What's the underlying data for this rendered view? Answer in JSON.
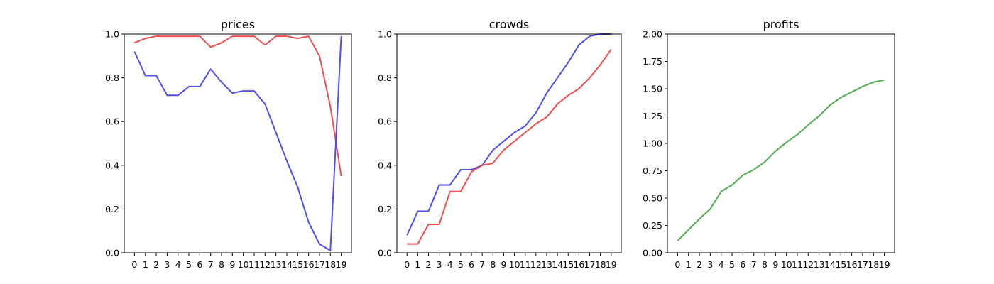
{
  "chart_data": [
    {
      "type": "line",
      "title": "prices",
      "xlabel": "",
      "ylabel": "",
      "x": [
        0,
        1,
        2,
        3,
        4,
        5,
        6,
        7,
        8,
        9,
        10,
        11,
        12,
        13,
        14,
        15,
        16,
        17,
        18,
        19
      ],
      "xticks": [
        "0",
        "1",
        "2",
        "3",
        "4",
        "5",
        "6",
        "7",
        "8",
        "9",
        "10",
        "11",
        "12",
        "13",
        "14",
        "15",
        "16",
        "17",
        "18",
        "19"
      ],
      "ylim": [
        0,
        1.0
      ],
      "yticks": [
        "0.0",
        "0.2",
        "0.4",
        "0.6",
        "0.8",
        "1.0"
      ],
      "grid": false,
      "series": [
        {
          "color": "#ef4444",
          "values": [
            0.96,
            0.98,
            0.99,
            0.99,
            0.99,
            0.99,
            0.99,
            0.94,
            0.96,
            0.99,
            0.99,
            0.99,
            0.95,
            0.99,
            0.99,
            0.98,
            0.99,
            0.9,
            0.67,
            0.35
          ]
        },
        {
          "color": "#4444ef",
          "values": [
            0.92,
            0.81,
            0.81,
            0.72,
            0.72,
            0.76,
            0.76,
            0.84,
            0.78,
            0.73,
            0.74,
            0.74,
            0.68,
            0.55,
            0.42,
            0.3,
            0.14,
            0.04,
            0.01,
            0.99
          ]
        }
      ]
    },
    {
      "type": "line",
      "title": "crowds",
      "xlabel": "",
      "ylabel": "",
      "x": [
        0,
        1,
        2,
        3,
        4,
        5,
        6,
        7,
        8,
        9,
        10,
        11,
        12,
        13,
        14,
        15,
        16,
        17,
        18,
        19
      ],
      "xticks": [
        "0",
        "1",
        "2",
        "3",
        "4",
        "5",
        "6",
        "7",
        "8",
        "9",
        "10",
        "11",
        "12",
        "13",
        "14",
        "15",
        "16",
        "17",
        "18",
        "19"
      ],
      "ylim": [
        0,
        1.0
      ],
      "yticks": [
        "0.0",
        "0.2",
        "0.4",
        "0.6",
        "0.8",
        "1.0"
      ],
      "grid": false,
      "series": [
        {
          "color": "#4444ef",
          "values": [
            0.08,
            0.19,
            0.19,
            0.31,
            0.31,
            0.38,
            0.38,
            0.4,
            0.47,
            0.51,
            0.55,
            0.58,
            0.64,
            0.73,
            0.8,
            0.87,
            0.95,
            0.99,
            1.0,
            1.0
          ]
        },
        {
          "color": "#ef4444",
          "values": [
            0.04,
            0.04,
            0.13,
            0.13,
            0.28,
            0.28,
            0.37,
            0.4,
            0.41,
            0.47,
            0.51,
            0.55,
            0.59,
            0.62,
            0.68,
            0.72,
            0.75,
            0.8,
            0.86,
            0.93
          ]
        }
      ]
    },
    {
      "type": "line",
      "title": "profits",
      "xlabel": "",
      "ylabel": "",
      "x": [
        0,
        1,
        2,
        3,
        4,
        5,
        6,
        7,
        8,
        9,
        10,
        11,
        12,
        13,
        14,
        15,
        16,
        17,
        18,
        19
      ],
      "xticks": [
        "0",
        "1",
        "2",
        "3",
        "4",
        "5",
        "6",
        "7",
        "8",
        "9",
        "10",
        "11",
        "12",
        "13",
        "14",
        "15",
        "16",
        "17",
        "18",
        "19"
      ],
      "ylim": [
        0,
        2.0
      ],
      "yticks": [
        "0.00",
        "0.25",
        "0.50",
        "0.75",
        "1.00",
        "1.25",
        "1.50",
        "1.75",
        "2.00"
      ],
      "grid": false,
      "series": [
        {
          "color": "#44aa44",
          "values": [
            0.11,
            0.21,
            0.31,
            0.4,
            0.56,
            0.62,
            0.71,
            0.76,
            0.83,
            0.93,
            1.01,
            1.08,
            1.17,
            1.25,
            1.35,
            1.42,
            1.47,
            1.52,
            1.56,
            1.58
          ]
        }
      ]
    }
  ]
}
